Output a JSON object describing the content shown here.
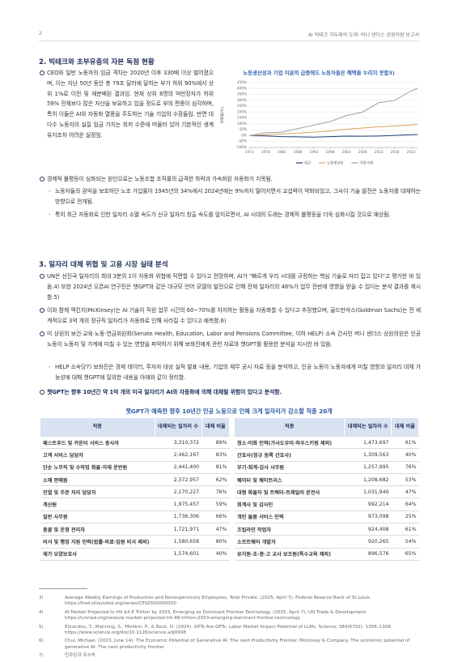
{
  "header": {
    "page": "2",
    "title": "AI 빅테크 과두제의 도래: 버니 샌더스 상원의원 보고서"
  },
  "section2": {
    "heading": "2. 빅테크와 초부유층의 자본 독점 현황",
    "lead": "CEO와 일반 노동자의 임금 격차는 2020년 이후 330배 이상 벌어졌으며, 이는 지난 50년 동안 총 79조 달러에 달하는 부가 하위 90%에서 상위 1%로 이전 및 재분배된 결과임. 현재 상위 8명의 억만장자가 하위 59% 전체보다 많은 자산을 보유하고 있을 정도로 부의 편중이 심각하며, 특히 이들은 AI와 자동화 열풍을 주도하는 기술 기업의 수장들임. 반면 대다수 노동자의 실질 임금 가치는 최저 수준에 머물러 있어 기본적인 생계유지조차 어려운 실정임.",
    "bullet": "경제적 불평등이 심화되는 원인으로는 노동조합 조직률의 급격한 하락과 가속화된 자동화가 지목됨.",
    "dashes": [
      "노동자들의 권익을 보호하던 노조 가입률이 1945년의 34%에서 2024년에는 9%까지 떨어지면서 교섭력이 약화되었고, 그사이 기술 발전은 노동자를 대체하는 방향으로 전개됨.",
      "특히 최근 자동화로 인한 일자리 소멸 속도가 신규 일자리 창출 속도를 앞지르면서, AI 시대의 도래는 경제적 불평등을 더욱 심화시킬 것으로 예상됨."
    ]
  },
  "chart_data": {
    "type": "line",
    "title": "노동생산성과 기업 이윤의 급증에도 노동자들은 혜택을 누리지 못함3)",
    "y_label": "변화율(%)",
    "x": [
      1973,
      1978,
      1983,
      1988,
      1993,
      1998,
      2003,
      2008,
      2013,
      2018,
      2023,
      2025
    ],
    "series": [
      {
        "name": "임금",
        "color": "#1f3b73",
        "values": [
          0,
          -2,
          -8,
          -10,
          -12,
          -8,
          -4,
          -5,
          -3,
          2,
          8,
          10
        ]
      },
      {
        "name": "노동생산성",
        "color": "#d8a25e",
        "values": [
          0,
          8,
          14,
          22,
          30,
          40,
          55,
          65,
          75,
          82,
          92,
          96
        ]
      },
      {
        "name": "기업 이윤",
        "color": "#9aa0a8",
        "values": [
          0,
          25,
          30,
          60,
          90,
          120,
          170,
          200,
          280,
          300,
          380,
          400
        ]
      }
    ],
    "xlim": [
      1973,
      2025
    ],
    "xticks": [
      1973,
      1978,
      1983,
      1988,
      1993,
      1998,
      2003,
      2008,
      2013,
      2018,
      2023
    ],
    "ylim": [
      -100,
      450
    ],
    "yticks": [
      {
        "value": 450,
        "label": "450%"
      },
      {
        "value": 400,
        "label": "400%"
      },
      {
        "value": 350,
        "label": "350%"
      },
      {
        "value": 300,
        "label": "300%"
      },
      {
        "value": 250,
        "label": "250%"
      },
      {
        "value": 200,
        "label": "200%"
      },
      {
        "value": 150,
        "label": "150%"
      },
      {
        "value": 100,
        "label": "100%"
      },
      {
        "value": 50,
        "label": "50%"
      },
      {
        "value": 0,
        "label": "0%"
      },
      {
        "value": -50,
        "label": "-50%"
      },
      {
        "value": -100,
        "label": "-100%"
      }
    ],
    "legend": "bottom"
  },
  "section3": {
    "heading": "3. 일자리 대체 위협 및 고용 시장 실태 분석",
    "bullets": [
      "UN은 선진국 일자리의 최대 3분의 1이 자동화 위협에 직면할 수 있다고 전망하며, AI가 \"빠르게 우리 시대를 규정하는 핵심 기술로 자리 잡고 있다\"고 평가한 바 있음.4) 또한 2024년 오픈AI 연구진은 챗GPT와 같은 대규모 언어 모델의 발전으로 인해 전체 일자리의 46%가 업무 전반에 영향을 받을 수 있다는 분석 결과를 제시함.5)",
      "이와 함께 맥킨지(McKinsey)는 AI 기술이 직원 업무 시간의 60~70%를 차지하는 활동을 자동화할 수 있다고 추정했으며, 골드만삭스(Goldman Sachs)는 전 세계적으로 3억 개의 정규직 일자리가 자동화로 인해 사라질 수 있다고 예측함.6)",
      "미 상원의 보건·교육·노동·연금위원회(Senate Health, Education, Labor and Pensions Committee, 이하 HELP) 소속 간사인 버니 샌더스 상원의원은 인공 노동이 노동자 및 가계에 미칠 수 있는 영향을 파악하기 위해 보좌진에게 관련 자료와 챗GPT를 활용한 분석을 지시한 바 있음."
    ],
    "dash": "HELP 소속당7) 보좌진은 경제 데이터, 투자자 대상 실적 발표 내용, 기업의 재무 공시 자료 등을 분석하고, 인공 노동이 노동자에게 미칠 영향과 일자리 대체 가능성에 대해 챗GPT에 질의한 내용을 아래와 같이 정리함.",
    "key": "챗GPT는 향후 10년간 약 1억 개의 미국 일자리가 AI와 자동화에 의해 대체될 위험이 있다고 분석함."
  },
  "table": {
    "title": "챗GPT가 예측한 향후 10년간 인공 노동으로 인해 크게 일자리가 감소할 직종 20개",
    "columns": [
      "직종",
      "대체되는 일자리 수",
      "대체 비율"
    ],
    "left_rows": [
      [
        "패스트푸드 및 카운터 서비스 종사자",
        "3,310,372",
        "89%"
      ],
      [
        "고객 서비스 담당자",
        "2,462,167",
        "83%"
      ],
      [
        "단순 노무직 및 수작업 화물·자재 운반원",
        "2,441,400",
        "81%"
      ],
      [
        "소매 판매원",
        "2,372,957",
        "62%"
      ],
      [
        "진열 및 주문 처리 담당자",
        "2,170,227",
        "76%"
      ],
      [
        "계산원",
        "1,975,457",
        "59%"
      ],
      [
        "일반 사무원",
        "1,736,306",
        "66%"
      ],
      [
        "총괄 및 운영 관리자",
        "1,721,971",
        "47%"
      ],
      [
        "비서 및 행정 지원 인력(법률·의료·임원 비서 제외)",
        "1,580,658",
        "80%"
      ],
      [
        "재가 요양보호사",
        "1,574,601",
        "40%"
      ]
    ],
    "right_rows": [
      [
        "청소·미화 인력(가사도우미·하우스키핑 제외)",
        "1,473,697",
        "61%"
      ],
      [
        "간호사(정규 등록 간호사)",
        "1,309,563",
        "40%"
      ],
      [
        "부기·회계·감사 사무원",
        "1,257,995",
        "76%"
      ],
      [
        "웨이터 및 웨이트리스",
        "1,208,682",
        "53%"
      ],
      [
        "대형 화물차 및 트랙터-트레일러 운전사",
        "1,031,940",
        "47%"
      ],
      [
        "회계사 및 감사인",
        "992,214",
        "64%"
      ],
      [
        "개인 돌봄 서비스 인력",
        "973,098",
        "25%"
      ],
      [
        "조립라인 작업자",
        "924,408",
        "61%"
      ],
      [
        "소프트웨어 개발자",
        "920,265",
        "54%"
      ],
      [
        "유치원·초·중·고 교사 보조원(특수교육 제외)",
        "896,576",
        "65%"
      ]
    ]
  },
  "footnotes": [
    {
      "num": "3)",
      "text": "Average Weekly Earnings of Production and Nonsupervisory Employees, Total Private. (2025, April 7). Federal Reserve Bank of St.Louis. https://fred.stlouisfed.org/series/CES0500000030"
    },
    {
      "num": "4)",
      "text": "AI Market Projected to Hit $4.8 Trillion by 2033, Emerging as Dominant Frontier Technology. (2025, April 7). UN Trade & Development. https://unctad.org/news/ai-market-projected-hit-48-trillion-2033-emerging-dominant-frontier-technology"
    },
    {
      "num": "5)",
      "text": "Eloundou, T., Manning, S., Mishkin, P., & Rock, D. (2024). GPTs Are GPTs: Labor Market Impact Potential of LLMs. Science, 384(6702), 1306–1308. https://www.science.org/doi/10.1126/science.adj0998"
    },
    {
      "num": "6)",
      "text": "Chui, Michael. (2023, June 14). The Economic Potential of Generative AI: The next Productivity Frontier. Mckinsey & Company. The economic potential of generative AI: The next productivity frontier"
    },
    {
      "num": "7)",
      "text": "민주당과 무소속"
    }
  ]
}
